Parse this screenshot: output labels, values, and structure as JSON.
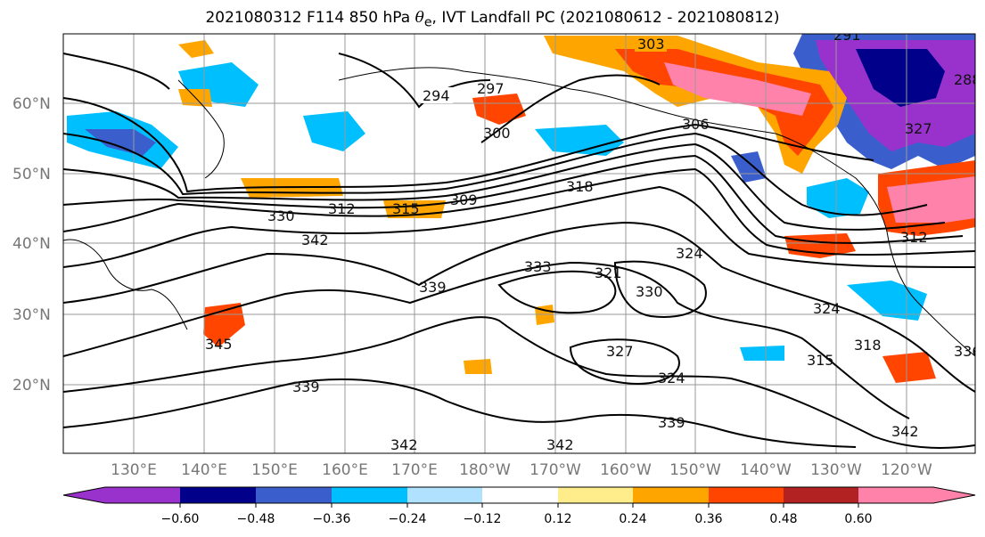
{
  "title": {
    "prefix": "2021080312 F114 850 hPa ",
    "symbol": "θ",
    "subscript": "e",
    "suffix": ", IVT Landfall PC (2021080612 - 2021080812)"
  },
  "map": {
    "lat_ticks": [
      "20°N",
      "30°N",
      "40°N",
      "50°N",
      "60°N"
    ],
    "lon_ticks": [
      "130°E",
      "140°E",
      "150°E",
      "160°E",
      "170°E",
      "180°W",
      "170°W",
      "160°W",
      "150°W",
      "140°W",
      "130°W",
      "120°W"
    ],
    "contour_labels": [
      "303",
      "294",
      "297",
      "300",
      "306",
      "318",
      "309",
      "315",
      "312",
      "330",
      "342",
      "333",
      "339",
      "321",
      "324",
      "330",
      "345",
      "324",
      "318",
      "315",
      "327",
      "324",
      "339",
      "339",
      "342",
      "342",
      "342",
      "336",
      "288",
      "291",
      "312",
      "327"
    ]
  },
  "colorbar": {
    "ticks": [
      "−0.60",
      "−0.48",
      "−0.36",
      "−0.24",
      "−0.12",
      "0.12",
      "0.24",
      "0.36",
      "0.48",
      "0.60"
    ],
    "colors": [
      "#9932cc",
      "#00008b",
      "#3a5fcd",
      "#00bfff",
      "#b0e2ff",
      "#ffffff",
      "#ffec8b",
      "#ffa500",
      "#ff4500",
      "#b22222",
      "#ff82ab"
    ]
  }
}
